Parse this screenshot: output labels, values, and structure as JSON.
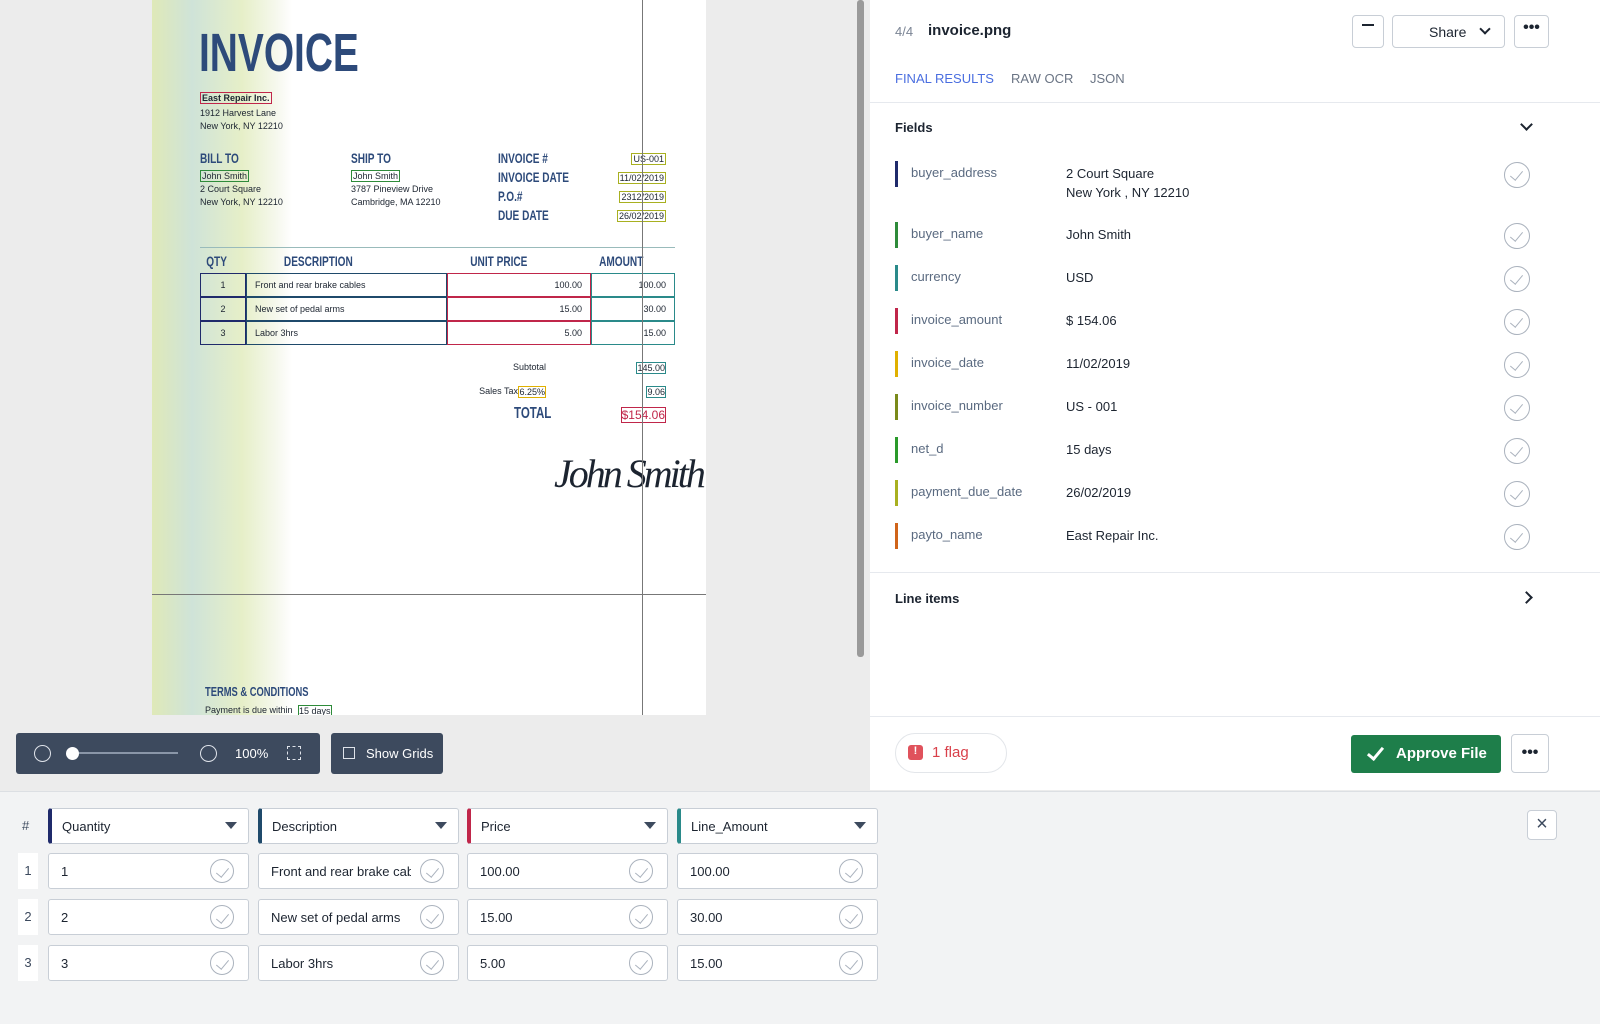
{
  "viewer": {
    "document": {
      "title": "INVOICE",
      "seller": {
        "name": "East Repair Inc.",
        "address": [
          "1912 Harvest Lane",
          "New York, NY 12210"
        ]
      },
      "bill_to": {
        "label": "BILL TO",
        "name": "John Smith",
        "address": [
          "2 Court Square",
          "New York, NY 12210"
        ]
      },
      "ship_to": {
        "label": "SHIP TO",
        "name": "John Smith",
        "address": [
          "3787 Pineview Drive",
          "Cambridge, MA 12210"
        ]
      },
      "meta": [
        {
          "label": "INVOICE #",
          "value": "US-001"
        },
        {
          "label": "INVOICE DATE",
          "value": "11/02/2019"
        },
        {
          "label": "P.O.#",
          "value": "2312/2019"
        },
        {
          "label": "DUE DATE",
          "value": "26/02/2019"
        }
      ],
      "items_header": [
        "QTY",
        "DESCRIPTION",
        "UNIT PRICE",
        "AMOUNT"
      ],
      "items": [
        [
          "1",
          "Front and rear brake cables",
          "100.00",
          "100.00"
        ],
        [
          "2",
          "New set of pedal arms",
          "15.00",
          "30.00"
        ],
        [
          "3",
          "Labor 3hrs",
          "5.00",
          "15.00"
        ]
      ],
      "subtotal": {
        "label": "Subtotal",
        "value": "145.00"
      },
      "tax": {
        "label": "Sales Tax",
        "rate": "6.25%",
        "value": "9.06"
      },
      "total": {
        "label": "TOTAL",
        "value": "$154.06"
      },
      "signature": "John Smith",
      "terms": {
        "title": "TERMS & CONDITIONS",
        "text": "Payment is due within",
        "highlight": "15 days"
      }
    },
    "zoom": "100%",
    "grid_button": "Show Grids"
  },
  "panel": {
    "counter": "4/4",
    "filename": "invoice.png",
    "share": "Share",
    "tabs": [
      "FINAL RESULTS",
      "RAW OCR",
      "JSON"
    ],
    "fields_title": "Fields",
    "fields": [
      {
        "name": "buyer_address",
        "value": [
          "2 Court Square",
          "New York , NY 12210"
        ],
        "color": "#1f2a6b"
      },
      {
        "name": "buyer_name",
        "value": [
          "John Smith"
        ],
        "color": "#2e8b3a"
      },
      {
        "name": "currency",
        "value": [
          "USD"
        ],
        "color": "#2a8a8a"
      },
      {
        "name": "invoice_amount",
        "value": [
          "$ 154.06"
        ],
        "color": "#c0264a"
      },
      {
        "name": "invoice_date",
        "value": [
          "11/02/2019"
        ],
        "color": "#e0b000"
      },
      {
        "name": "invoice_number",
        "value": [
          "US - 001"
        ],
        "color": "#7a8a1a"
      },
      {
        "name": "net_d",
        "value": [
          "15 days"
        ],
        "color": "#2a9a2a"
      },
      {
        "name": "payment_due_date",
        "value": [
          "26/02/2019"
        ],
        "color": "#a8b020"
      },
      {
        "name": "payto_name",
        "value": [
          "East Repair Inc."
        ],
        "color": "#d0641a"
      }
    ],
    "line_items_title": "Line items",
    "flag": "1 flag",
    "approve": "Approve File"
  },
  "table": {
    "headers": [
      {
        "label": "#",
        "color": null
      },
      {
        "label": "Quantity",
        "color": "#1f2a6b"
      },
      {
        "label": "Description",
        "color": "#1f4a6b"
      },
      {
        "label": "Price",
        "color": "#c0264a"
      },
      {
        "label": "Line_Amount",
        "color": "#2a8a8a"
      }
    ],
    "rows": [
      [
        "1",
        "1",
        "Front and rear brake cables",
        "100.00",
        "100.00"
      ],
      [
        "2",
        "2",
        "New set of pedal arms",
        "15.00",
        "30.00"
      ],
      [
        "3",
        "3",
        "Labor 3hrs",
        "5.00",
        "15.00"
      ]
    ]
  }
}
